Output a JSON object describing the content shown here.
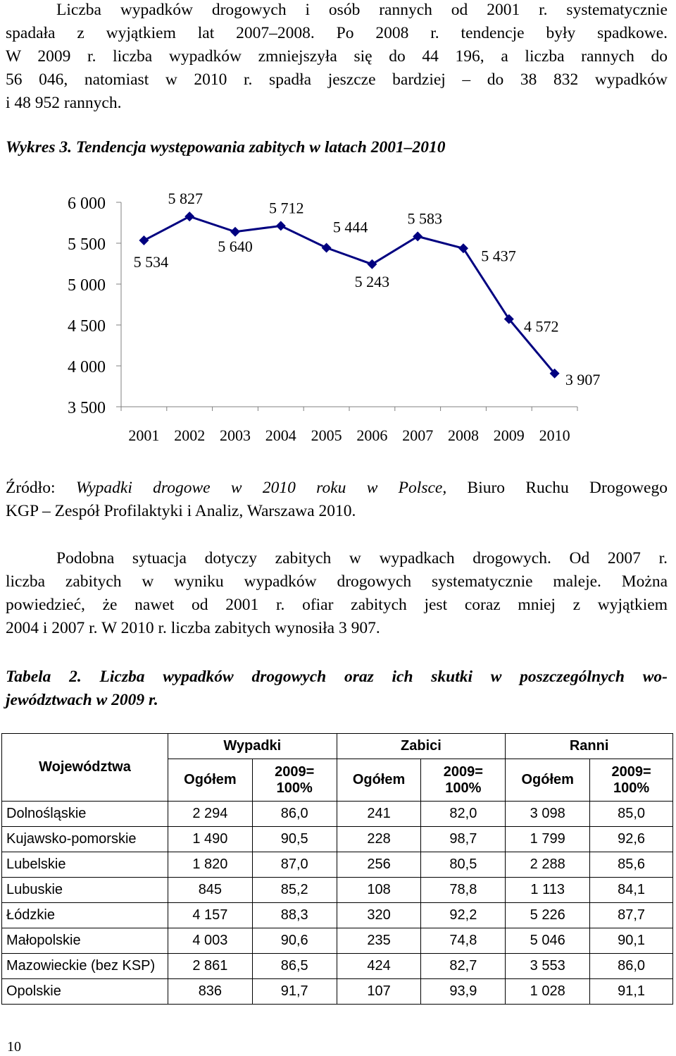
{
  "paragraph1": [
    "Liczba wypadków drogowych i osób rannych od 2001 r. systematycznie",
    "spadała z wyjątkiem lat 2007–2008. Po 2008 r. tendencje były spadkowe.",
    "W 2009 r. liczba wypadków zmniejszyła się do 44 196, a liczba rannych do",
    "56 046, natomiast w 2010 r. spadła jeszcze bardziej – do 38 832 wypadków",
    "i 48 952 rannych."
  ],
  "figure_caption": "Wykres 3. Tendencja występowania zabitych w latach 2001–2010",
  "chart_data": {
    "type": "line",
    "title": "",
    "x": [
      "2001",
      "2002",
      "2003",
      "2004",
      "2005",
      "2006",
      "2007",
      "2008",
      "2009",
      "2010"
    ],
    "values": [
      5534,
      5827,
      5640,
      5712,
      5444,
      5243,
      5583,
      5437,
      4572,
      3907
    ],
    "data_labels": [
      "5 534",
      "5 827",
      "5 640",
      "5 712",
      "5 444",
      "5 243",
      "5 583",
      "5 437",
      "4 572",
      "3 907"
    ],
    "y_ticks": [
      "6 000",
      "5 500",
      "5 000",
      "4 500",
      "4 000",
      "3 500"
    ],
    "y_tick_values": [
      6000,
      5500,
      5000,
      4500,
      4000,
      3500
    ],
    "ylim": [
      3500,
      6000
    ],
    "grid": false,
    "marker": "diamond",
    "color": "#000080"
  },
  "source": {
    "prefix": "Źródło: ",
    "title_italic": "Wypadki drogowe w 2010 roku w Polsce,",
    "rest_line1": " Biuro Ruchu Drogowego",
    "line2": "KGP – Zespół Profilaktyki i Analiz, Warszawa 2010."
  },
  "paragraph2": [
    "Podobna sytuacja dotyczy zabitych w wypadkach drogowych. Od 2007 r.",
    "liczba zabitych w wyniku wypadków drogowych systematycznie maleje. Można",
    "powiedzieć, że nawet od 2001 r. ofiar zabitych jest coraz mniej z wyjątkiem",
    "2004 i 2007 r. W 2010 r. liczba zabitych wynosiła 3 907."
  ],
  "table_caption": [
    "Tabela 2. Liczba wypadków drogowych oraz ich skutki w poszczególnych wo-",
    "jewództwach w 2009 r."
  ],
  "table": {
    "header_region": "Województwa",
    "groups": [
      "Wypadki",
      "Zabici",
      "Ranni"
    ],
    "sub_total": "Ogółem",
    "sub_index_line1": "2009=",
    "sub_index_line2": "100%",
    "rows": [
      {
        "name": "Dolnośląskie",
        "cells": [
          "2 294",
          "86,0",
          "241",
          "82,0",
          "3 098",
          "85,0"
        ]
      },
      {
        "name": "Kujawsko-pomorskie",
        "cells": [
          "1 490",
          "90,5",
          "228",
          "98,7",
          "1 799",
          "92,6"
        ]
      },
      {
        "name": "Lubelskie",
        "cells": [
          "1 820",
          "87,0",
          "256",
          "80,5",
          "2 288",
          "85,6"
        ]
      },
      {
        "name": "Lubuskie",
        "cells": [
          "845",
          "85,2",
          "108",
          "78,8",
          "1 113",
          "84,1"
        ]
      },
      {
        "name": "Łódzkie",
        "cells": [
          "4 157",
          "88,3",
          "320",
          "92,2",
          "5 226",
          "87,7"
        ]
      },
      {
        "name": "Małopolskie",
        "cells": [
          "4 003",
          "90,6",
          "235",
          "74,8",
          "5 046",
          "90,1"
        ]
      },
      {
        "name": "Mazowieckie (bez KSP)",
        "cells": [
          "2 861",
          "86,5",
          "424",
          "82,7",
          "3 553",
          "86,0"
        ]
      },
      {
        "name": "Opolskie",
        "cells": [
          "836",
          "91,7",
          "107",
          "93,9",
          "1 028",
          "91,1"
        ]
      }
    ]
  },
  "page_number": "10"
}
